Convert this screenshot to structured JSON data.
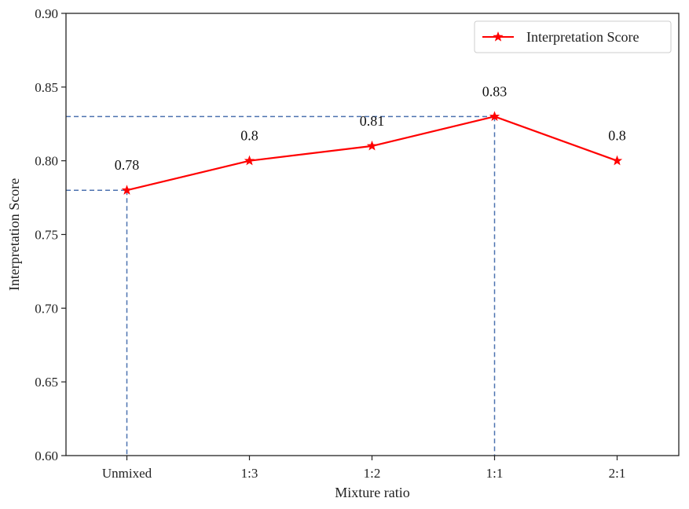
{
  "chart_data": {
    "type": "line",
    "title": "",
    "xlabel": "Mixture  ratio",
    "ylabel": "Interpretation Score",
    "categories": [
      "Unmixed",
      "1:3",
      "1:2",
      "1:1",
      "2:1"
    ],
    "series": [
      {
        "name": "Interpretation Score",
        "values": [
          0.78,
          0.8,
          0.81,
          0.83,
          0.8
        ],
        "data_labels": [
          "0.78",
          "0.8",
          "0.81",
          "0.83",
          "0.8"
        ],
        "color": "#ff0000",
        "marker": "star"
      }
    ],
    "ylim": [
      0.6,
      0.9
    ],
    "yticks": [
      "0.60",
      "0.65",
      "0.70",
      "0.75",
      "0.80",
      "0.85",
      "0.90"
    ],
    "reference_lines": [
      {
        "category": "Unmixed",
        "value": 0.78,
        "color": "#4c72b0",
        "style": "dashed"
      },
      {
        "category": "1:1",
        "value": 0.83,
        "color": "#4c72b0",
        "style": "dashed"
      }
    ],
    "legend": {
      "position": "top-right",
      "entries": [
        "Interpretation Score"
      ]
    },
    "grid": false
  }
}
